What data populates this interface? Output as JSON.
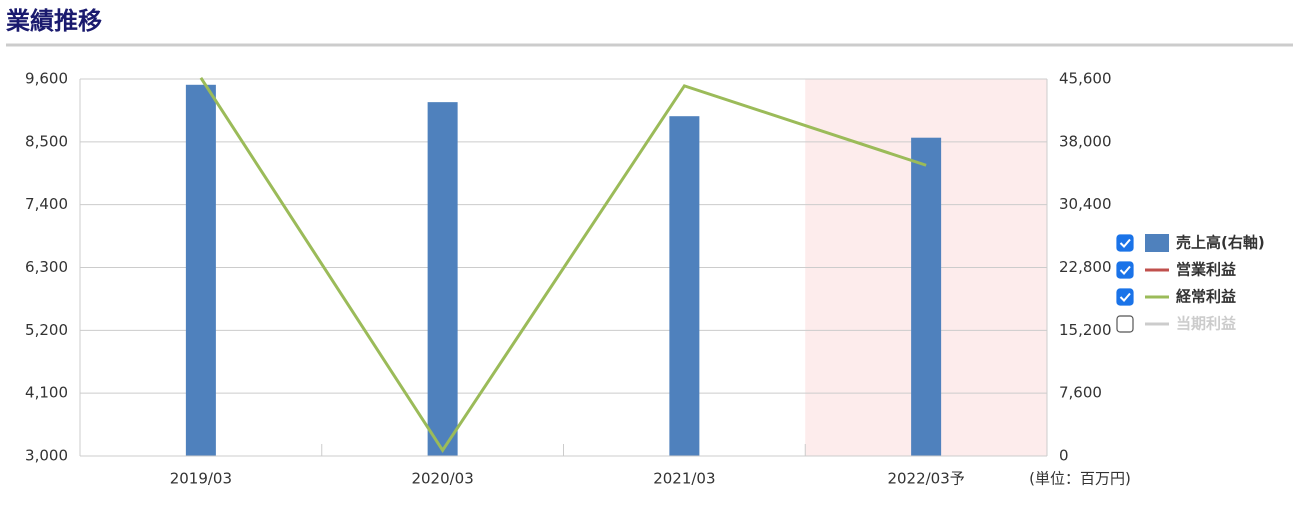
{
  "chart_data": {
    "type": "combo",
    "title": "業績推移",
    "unit_note": "(単位：百万円)",
    "categories": [
      "2019/03",
      "2020/03",
      "2021/03",
      "2022/03予"
    ],
    "highlight": {
      "index": 3,
      "color": "#fdecec"
    },
    "ylim": [
      3000,
      9600
    ],
    "yticks": [
      {
        "value": 3000,
        "label": "3,000"
      },
      {
        "value": 4100,
        "label": "4,100"
      },
      {
        "value": 5200,
        "label": "5,200"
      },
      {
        "value": 6300,
        "label": "6,300"
      },
      {
        "value": 7400,
        "label": "7,400"
      },
      {
        "value": 8500,
        "label": "8,500"
      },
      {
        "value": 9600,
        "label": "9,600"
      }
    ],
    "y2lim": [
      0,
      45600
    ],
    "y2ticks": [
      0,
      {
        "value": 7600,
        "label": "7,600"
      },
      {
        "value": 15200,
        "label": "15,200"
      },
      {
        "value": 22800,
        "label": "22,800"
      },
      {
        "value": 30400,
        "label": "30,400"
      },
      {
        "value": 38000,
        "label": "38,000"
      },
      {
        "value": 45600,
        "label": "45,600"
      }
    ],
    "grid": true,
    "series": [
      {
        "name": "売上高(右軸)",
        "type": "bar",
        "axis": "y2",
        "color": "#4f81bd",
        "checked": true,
        "values": [
          44900,
          42800,
          41100,
          38500
        ]
      },
      {
        "name": "営業利益",
        "type": "line",
        "color": "#c0504d",
        "checked": true,
        "values": [
          null,
          null,
          null,
          null
        ]
      },
      {
        "name": "経常利益",
        "type": "line",
        "color": "#9bbb59",
        "checked": true,
        "values": [
          9620,
          3100,
          9480,
          8090
        ]
      },
      {
        "name": "当期利益",
        "type": "line",
        "color": "#cccccc",
        "checked": false,
        "values": [
          null,
          null,
          null,
          null
        ]
      }
    ]
  }
}
